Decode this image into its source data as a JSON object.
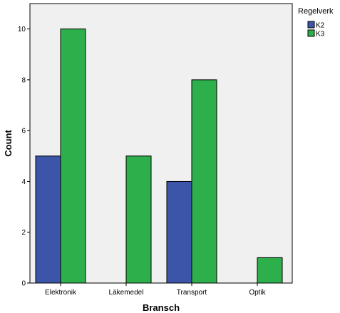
{
  "chart_data": {
    "type": "bar",
    "categories": [
      "Elektronik",
      "Läkemedel",
      "Transport",
      "Optik"
    ],
    "series": [
      {
        "name": "K2",
        "values": [
          5,
          0,
          4,
          0
        ],
        "color": "#3d55a8"
      },
      {
        "name": "K3",
        "values": [
          10,
          5,
          8,
          1
        ],
        "color": "#2db04b"
      }
    ],
    "xlabel": "Bransch",
    "ylabel": "Count",
    "ylim": [
      0,
      11
    ],
    "yticks": [
      0,
      2,
      4,
      6,
      8,
      10
    ],
    "grid": false,
    "legend": {
      "title": "Regelverk",
      "placement": "top-right, outside plot"
    },
    "plot_background": "#f0f0f0"
  }
}
